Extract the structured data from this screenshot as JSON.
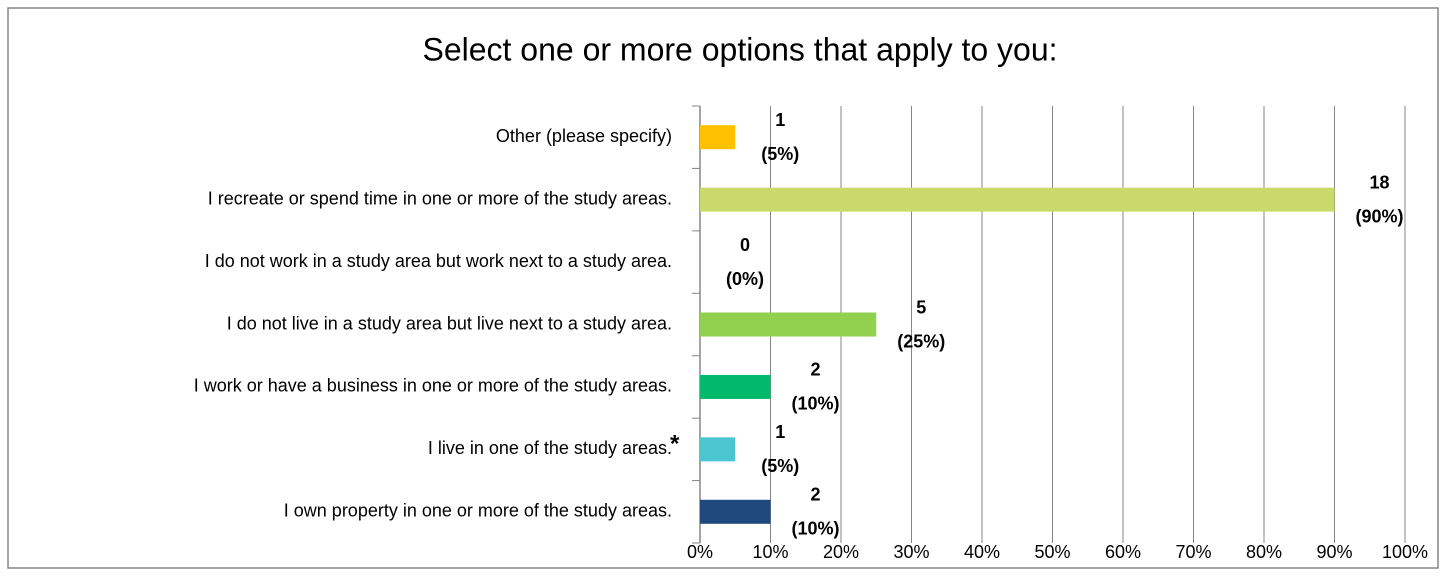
{
  "chart_data": {
    "type": "barh",
    "title": "Select one or more options that apply to you:",
    "categories": [
      "Other (please specify)",
      "I recreate or spend time in one or more of the study areas.",
      "I do not work in a study area but work next to a study area.",
      "I do not live in a study area but live next to a study area.",
      "I work or have a business in one or more of the study areas.",
      "I live in one of the study areas.",
      "I own property in one or more of the study areas."
    ],
    "values": [
      5,
      90,
      0,
      25,
      10,
      5,
      10
    ],
    "value_labels": [
      "(5%)",
      "(90%)",
      "(0%)",
      "(25%)",
      "(10%)",
      "(5%)",
      "(10%)"
    ],
    "counts": [
      1,
      18,
      0,
      5,
      2,
      1,
      2
    ],
    "colors": [
      "#ffc000",
      "#c9da6b",
      "#c9da6b",
      "#92d050",
      "#00b96b",
      "#4bc6d0",
      "#1f497d"
    ],
    "annotation": "*",
    "xlim": [
      0,
      100
    ],
    "xticks": [
      {
        "value": 0,
        "label": "0%"
      },
      {
        "value": 10,
        "label": "10%"
      },
      {
        "value": 20,
        "label": "20%"
      },
      {
        "value": 30,
        "label": "30%"
      },
      {
        "value": 40,
        "label": "40%"
      },
      {
        "value": 50,
        "label": "50%"
      },
      {
        "value": 60,
        "label": "60%"
      },
      {
        "value": 70,
        "label": "70%"
      },
      {
        "value": 80,
        "label": "80%"
      },
      {
        "value": 90,
        "label": "90%"
      },
      {
        "value": 100,
        "label": "100%"
      }
    ],
    "grid": true
  }
}
